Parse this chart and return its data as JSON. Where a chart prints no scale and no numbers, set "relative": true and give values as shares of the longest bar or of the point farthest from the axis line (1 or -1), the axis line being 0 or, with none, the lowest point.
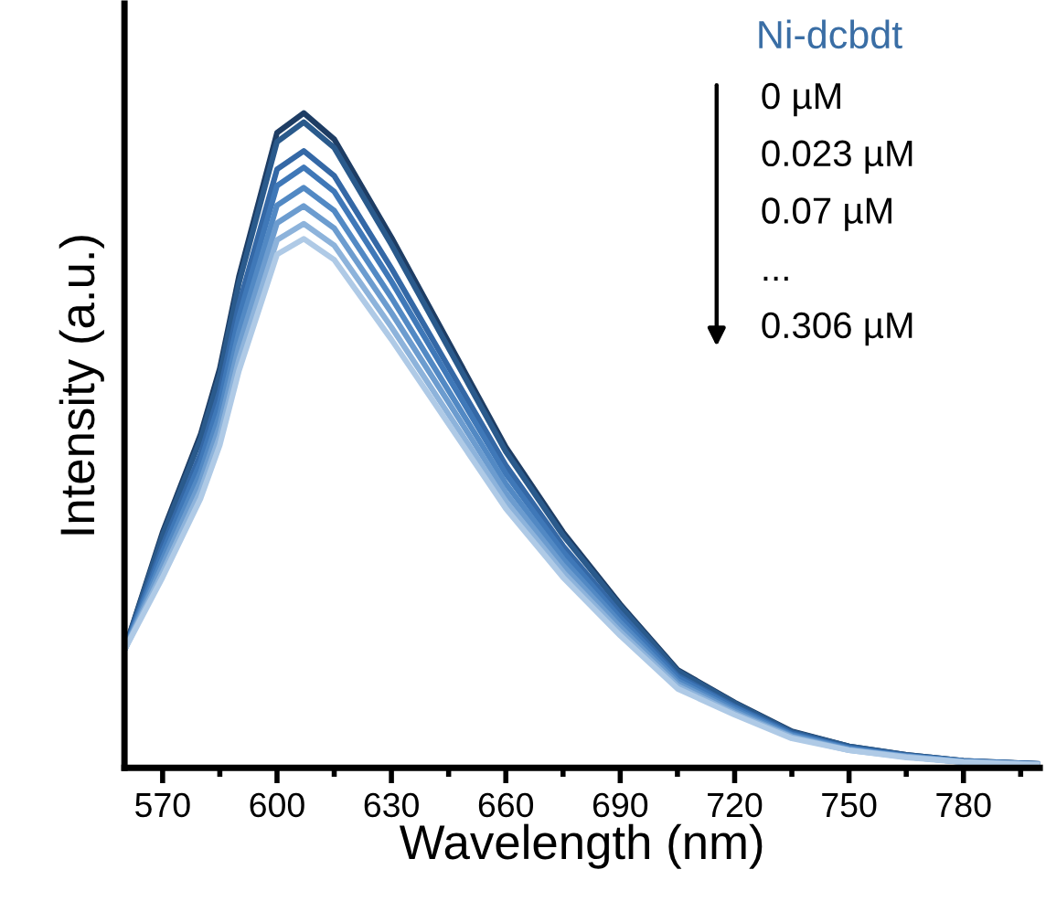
{
  "chart_data": {
    "type": "line",
    "relative": true,
    "xlabel": "Wavelength (nm)",
    "ylabel": "Intensity (a.u.)",
    "x": [
      560,
      570,
      580,
      585,
      590,
      600,
      607,
      615,
      630,
      645,
      660,
      675,
      690,
      705,
      720,
      735,
      750,
      765,
      780,
      800
    ],
    "xlim": [
      560,
      800
    ],
    "xticks": [
      570,
      {
        "value": 585,
        "label": null
      },
      600,
      {
        "value": 615,
        "label": null
      },
      630,
      {
        "value": 645,
        "label": null
      },
      660,
      {
        "value": 675,
        "label": null
      },
      690,
      {
        "value": 705,
        "label": null
      },
      720,
      {
        "value": 735,
        "label": null
      },
      750,
      {
        "value": 765,
        "label": null
      },
      780,
      {
        "value": 795,
        "label": null
      }
    ],
    "grid": false,
    "legend": false,
    "marker": "none",
    "line_style": "solid",
    "series": [
      {
        "color": "#1e3d64",
        "values": [
          0.18,
          0.36,
          0.51,
          0.61,
          0.75,
          0.97,
          1.0,
          0.96,
          0.81,
          0.65,
          0.49,
          0.36,
          0.25,
          0.15,
          0.1,
          0.056,
          0.033,
          0.02,
          0.011,
          0.006
        ]
      },
      {
        "color": "#2a5a8c",
        "values": [
          0.18,
          0.355,
          0.503,
          0.601,
          0.74,
          0.956,
          0.986,
          0.947,
          0.799,
          0.641,
          0.483,
          0.355,
          0.247,
          0.148,
          0.099,
          0.055,
          0.033,
          0.02,
          0.011,
          0.006
        ]
      },
      {
        "color": "#3468a6",
        "values": [
          0.18,
          0.339,
          0.48,
          0.575,
          0.707,
          0.914,
          0.942,
          0.904,
          0.763,
          0.612,
          0.462,
          0.339,
          0.236,
          0.141,
          0.094,
          0.053,
          0.031,
          0.019,
          0.01,
          0.006
        ]
      },
      {
        "color": "#3f78b8",
        "values": [
          0.18,
          0.33,
          0.468,
          0.559,
          0.688,
          0.889,
          0.917,
          0.88,
          0.743,
          0.596,
          0.449,
          0.33,
          0.229,
          0.138,
          0.092,
          0.051,
          0.03,
          0.018,
          0.01,
          0.006
        ]
      },
      {
        "color": "#5289c4",
        "values": [
          0.18,
          0.319,
          0.452,
          0.54,
          0.665,
          0.859,
          0.886,
          0.851,
          0.718,
          0.576,
          0.434,
          0.319,
          0.222,
          0.133,
          0.089,
          0.05,
          0.029,
          0.018,
          0.01,
          0.005
        ]
      },
      {
        "color": "#6c9ccf",
        "values": [
          0.18,
          0.309,
          0.438,
          0.523,
          0.644,
          0.832,
          0.858,
          0.824,
          0.695,
          0.558,
          0.42,
          0.309,
          0.215,
          0.129,
          0.086,
          0.048,
          0.028,
          0.017,
          0.009,
          0.005
        ]
      },
      {
        "color": "#8db3db",
        "values": [
          0.18,
          0.299,
          0.424,
          0.507,
          0.623,
          0.806,
          0.831,
          0.798,
          0.673,
          0.54,
          0.407,
          0.299,
          0.208,
          0.125,
          0.083,
          0.047,
          0.027,
          0.017,
          0.009,
          0.005
        ]
      },
      {
        "color": "#afcae6",
        "values": [
          0.18,
          0.291,
          0.412,
          0.493,
          0.606,
          0.784,
          0.808,
          0.776,
          0.654,
          0.525,
          0.396,
          0.291,
          0.202,
          0.121,
          0.081,
          0.045,
          0.027,
          0.016,
          0.009,
          0.005
        ]
      }
    ],
    "annotations": [
      "Ni-dcbdt",
      "0 µM",
      "0.023 µM",
      "0.07 µM",
      "...",
      "0.306 µM"
    ]
  }
}
